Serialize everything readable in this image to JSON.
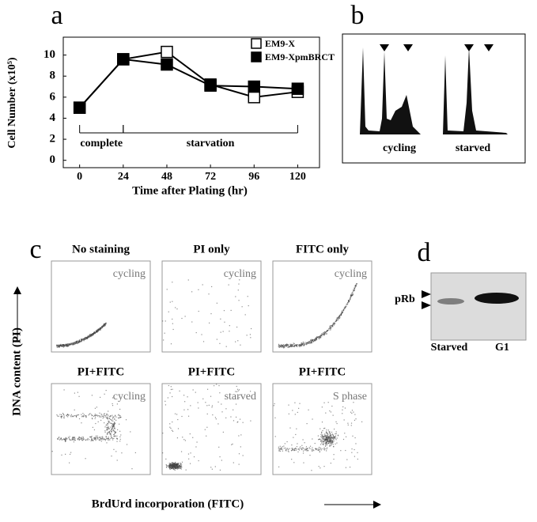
{
  "panel_labels": [
    "a",
    "b",
    "c",
    "d"
  ],
  "chart_data": {
    "type": "line",
    "y_label": "Cell Number (x10⁵)",
    "x_label": "Time after Plating (hr)",
    "x": [
      0,
      24,
      48,
      72,
      96,
      120
    ],
    "xlim": [
      -9,
      132
    ],
    "xticks": [
      0,
      24,
      48,
      72,
      96,
      120
    ],
    "ylim": [
      -0.7,
      11.7
    ],
    "yticks": [
      0,
      2,
      4,
      6,
      8,
      10
    ],
    "legend": "upper right",
    "series": [
      {
        "name": "EM9-X",
        "color": "#ffffff",
        "values": [
          5.0,
          9.6,
          10.3,
          7.2,
          6.0,
          6.5
        ]
      },
      {
        "name": "EM9-XpmBRCT",
        "color": "#000000",
        "values": [
          5.0,
          9.6,
          9.1,
          7.1,
          7.0,
          6.8
        ]
      }
    ],
    "phases": [
      {
        "label": "complete",
        "start": 0,
        "end": 24
      },
      {
        "label": "starvation",
        "start": 24,
        "end": 120
      }
    ]
  },
  "panel_b": {
    "labels": [
      "cycling",
      "starved"
    ]
  },
  "panel_c": {
    "y_label": "DNA content (PI)",
    "x_label": "BrdUrd incorporation (FITC)",
    "plots": [
      {
        "title": "No staining",
        "condition": "cycling"
      },
      {
        "title": "PI only",
        "condition": "cycling"
      },
      {
        "title": "FITC only",
        "condition": "cycling"
      },
      {
        "title": "PI+FITC",
        "condition": "cycling"
      },
      {
        "title": "PI+FITC",
        "condition": "starved"
      },
      {
        "title": "PI+FITC",
        "condition": "S phase"
      }
    ]
  },
  "panel_d": {
    "band_label": "pRb",
    "lanes": [
      "Starved",
      "G1"
    ]
  }
}
